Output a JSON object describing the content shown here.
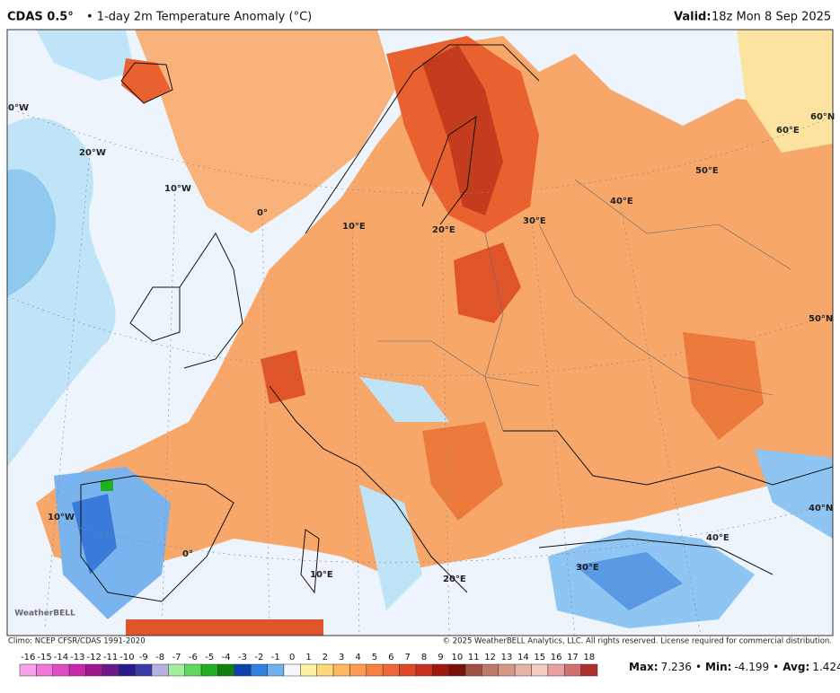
{
  "header": {
    "model": "CDAS 0.5°",
    "title": "• 1-day 2m Temperature Anomaly (°C)",
    "valid_label": "Valid:",
    "valid_time": "18z Mon 8 Sep 2025"
  },
  "map": {
    "labels": [
      "0°W",
      "20°W",
      "10°W",
      "0°",
      "10°E",
      "20°E",
      "30°E",
      "40°E",
      "50°E",
      "60°E",
      "60°N",
      "50°N",
      "40°N",
      "10°W",
      "0°",
      "10°E",
      "20°E",
      "30°E",
      "40°E"
    ],
    "logo": "WeatherBELL"
  },
  "footer": {
    "climo": "Climo: NCEP CFSR/CDAS 1991-2020",
    "copyright": "© 2025 WeatherBELL Analytics, LLC. All rights reserved. License required for commercial distribution."
  },
  "colorbar": {
    "ticks": [
      -16,
      -15,
      -14,
      -13,
      -12,
      -11,
      -10,
      -9,
      -8,
      -7,
      -6,
      -5,
      -4,
      -3,
      -2,
      -1,
      0,
      1,
      2,
      3,
      4,
      5,
      6,
      7,
      8,
      9,
      10,
      11,
      12,
      13,
      14,
      15,
      16,
      17,
      18
    ],
    "colors": [
      "#f9a3e8",
      "#f078d8",
      "#e04cc4",
      "#c828ac",
      "#a01890",
      "#6a1a8a",
      "#2a1a8c",
      "#3a3aa8",
      "#b8b0e0",
      "#a0f0a0",
      "#60d860",
      "#20b020",
      "#108010",
      "#1040b0",
      "#3080e0",
      "#70b0f0",
      "#f4f8fc",
      "#fff2a0",
      "#ffd878",
      "#ffb860",
      "#ff9c50",
      "#f88040",
      "#f06838",
      "#e04828",
      "#c83020",
      "#a01810",
      "#7a1008",
      "#a05040",
      "#c07868",
      "#d89888",
      "#e8b4a8",
      "#f4ccc4",
      "#e8a0a0",
      "#d07070",
      "#b03030"
    ]
  },
  "stats": {
    "separator": "•",
    "items": [
      {
        "label": "Max:",
        "value": 7.236
      },
      {
        "label": "Min:",
        "value": -4.199
      },
      {
        "label": "Avg:",
        "value": 1.424
      }
    ]
  }
}
